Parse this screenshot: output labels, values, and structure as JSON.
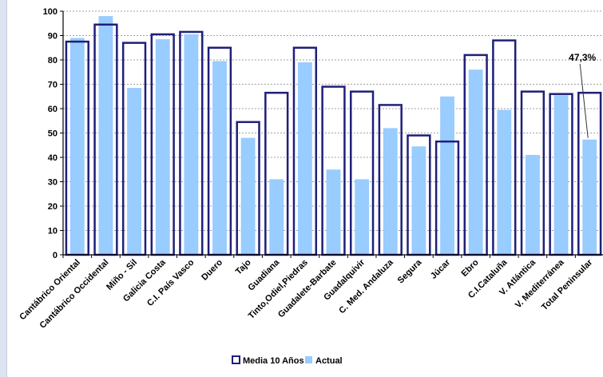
{
  "chart_data": {
    "type": "bar",
    "ylim": [
      0,
      100
    ],
    "yticks": [
      0,
      10,
      20,
      30,
      40,
      50,
      60,
      70,
      80,
      90,
      100
    ],
    "grid": true,
    "legend_position": "bottom",
    "categories": [
      "Cantábrico Oriental",
      "Cantábrico Occidental",
      "Miño - Sil",
      "Galicia Costa",
      "C.I. País Vasco",
      "Duero",
      "Tajo",
      "Guadiana",
      "Tinto,Odiel,Piedras",
      "Guadalete-Barbate",
      "Guadalquivir",
      "C. Med. Andaluza",
      "Segura",
      "Júcar",
      "Ebro",
      "C.I.Cataluña",
      "V. Atlántica",
      "V. Mediterránea",
      "Total Peninsular"
    ],
    "series": [
      {
        "name": "Media 10 Años",
        "style": "outline",
        "color": "#1f1f7a",
        "values": [
          87.5,
          94.5,
          87,
          90.5,
          91.5,
          85,
          54.5,
          66.5,
          85,
          69,
          67,
          61.5,
          49,
          46.5,
          82,
          88,
          67,
          66,
          66.5
        ]
      },
      {
        "name": "Actual",
        "style": "fill",
        "color": "#99ccff",
        "values": [
          89,
          98,
          68.5,
          88.5,
          90.5,
          79.5,
          48,
          31,
          79,
          35,
          31,
          52,
          44.5,
          65,
          76,
          59.5,
          41,
          65.5,
          47.3
        ]
      }
    ],
    "annotation": {
      "text": "47,3%",
      "category": "Total Peninsular",
      "value": 47.3
    }
  }
}
